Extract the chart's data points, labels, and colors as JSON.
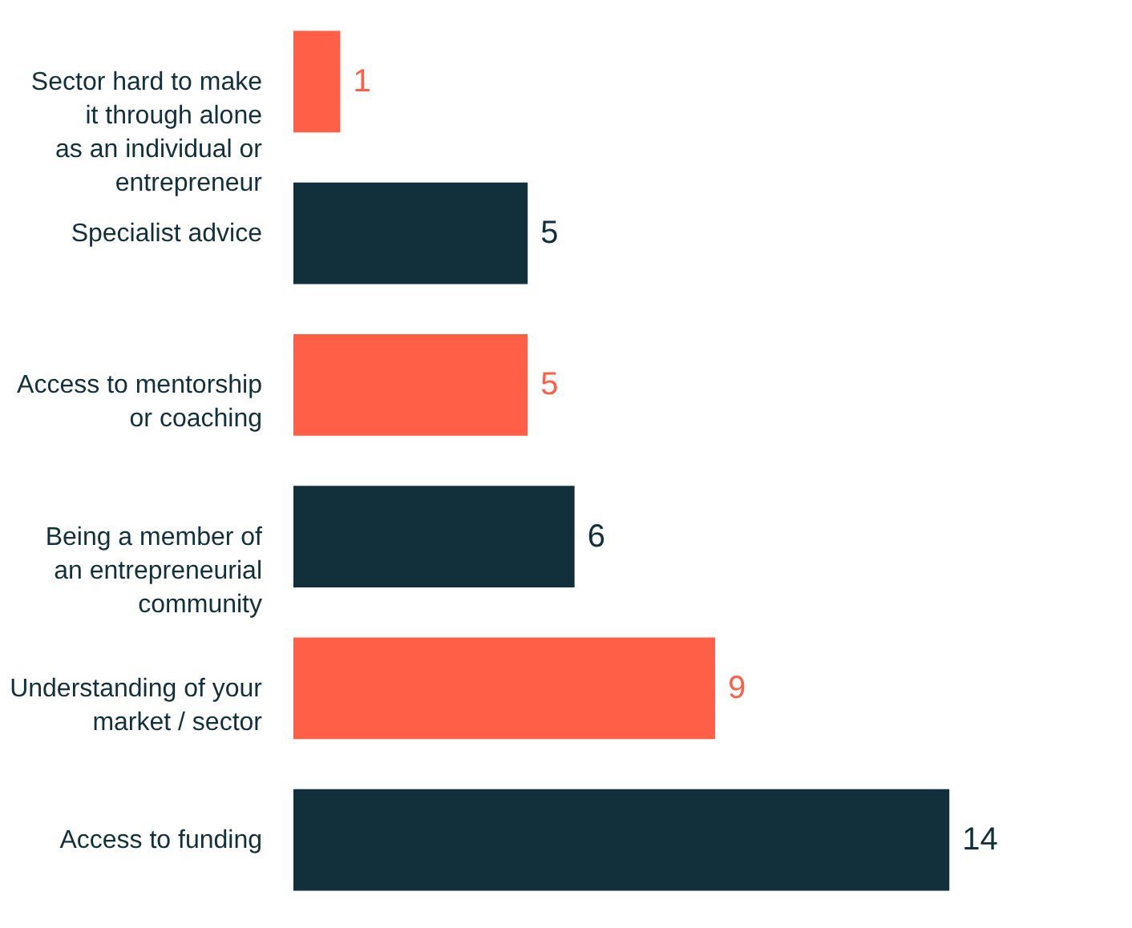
{
  "chart_data": {
    "type": "bar",
    "orientation": "horizontal",
    "data_labels": true,
    "categories": [
      "Sector hard to make\nit through alone\nas an individual or\nentrepreneur",
      "Specialist advice",
      "Access to mentorship\nor coaching",
      "Being a member of\nan entrepreneurial\ncommunity",
      "Understanding of your\nmarket / sector",
      "Access to funding"
    ],
    "values": [
      1,
      5,
      5,
      6,
      9,
      14
    ],
    "colors": [
      "#ff5f46",
      "#11303c",
      "#ff5f46",
      "#11303c",
      "#ff5f46",
      "#11303c"
    ]
  }
}
